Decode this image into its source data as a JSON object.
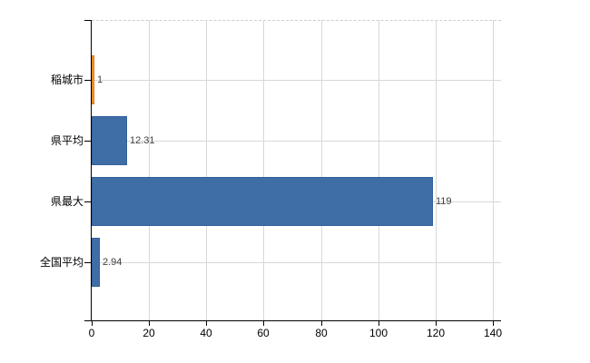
{
  "chart_data": {
    "type": "bar",
    "orientation": "horizontal",
    "title": "",
    "xlabel": "",
    "ylabel": "",
    "categories": [
      "稲城市",
      "県平均",
      "県最大",
      "全国平均"
    ],
    "values": [
      1,
      12.31,
      119,
      2.94
    ],
    "value_labels": [
      "1",
      "12.31",
      "119",
      "2.94"
    ],
    "bar_colors": [
      "#ffa230",
      "#3e6ea5",
      "#3e6ea5",
      "#3e6ea5"
    ],
    "bar_border_colors": [
      "#d4761a",
      "#30619b",
      "#30619b",
      "#30619b"
    ],
    "x_ticks": [
      0,
      20,
      40,
      60,
      80,
      100,
      120,
      140
    ],
    "x_tick_labels": [
      "0",
      "20",
      "40",
      "60",
      "80",
      "100",
      "120",
      "140"
    ],
    "xlim": [
      0,
      140
    ],
    "grid": true,
    "legend": "none",
    "colors": {
      "series": "#3e6ea5",
      "highlight": "#ffa230",
      "gridline": "#d8d8d8",
      "axis": "#000000",
      "value_label_text": "#3f3f3f",
      "background": "#ffffff"
    }
  }
}
